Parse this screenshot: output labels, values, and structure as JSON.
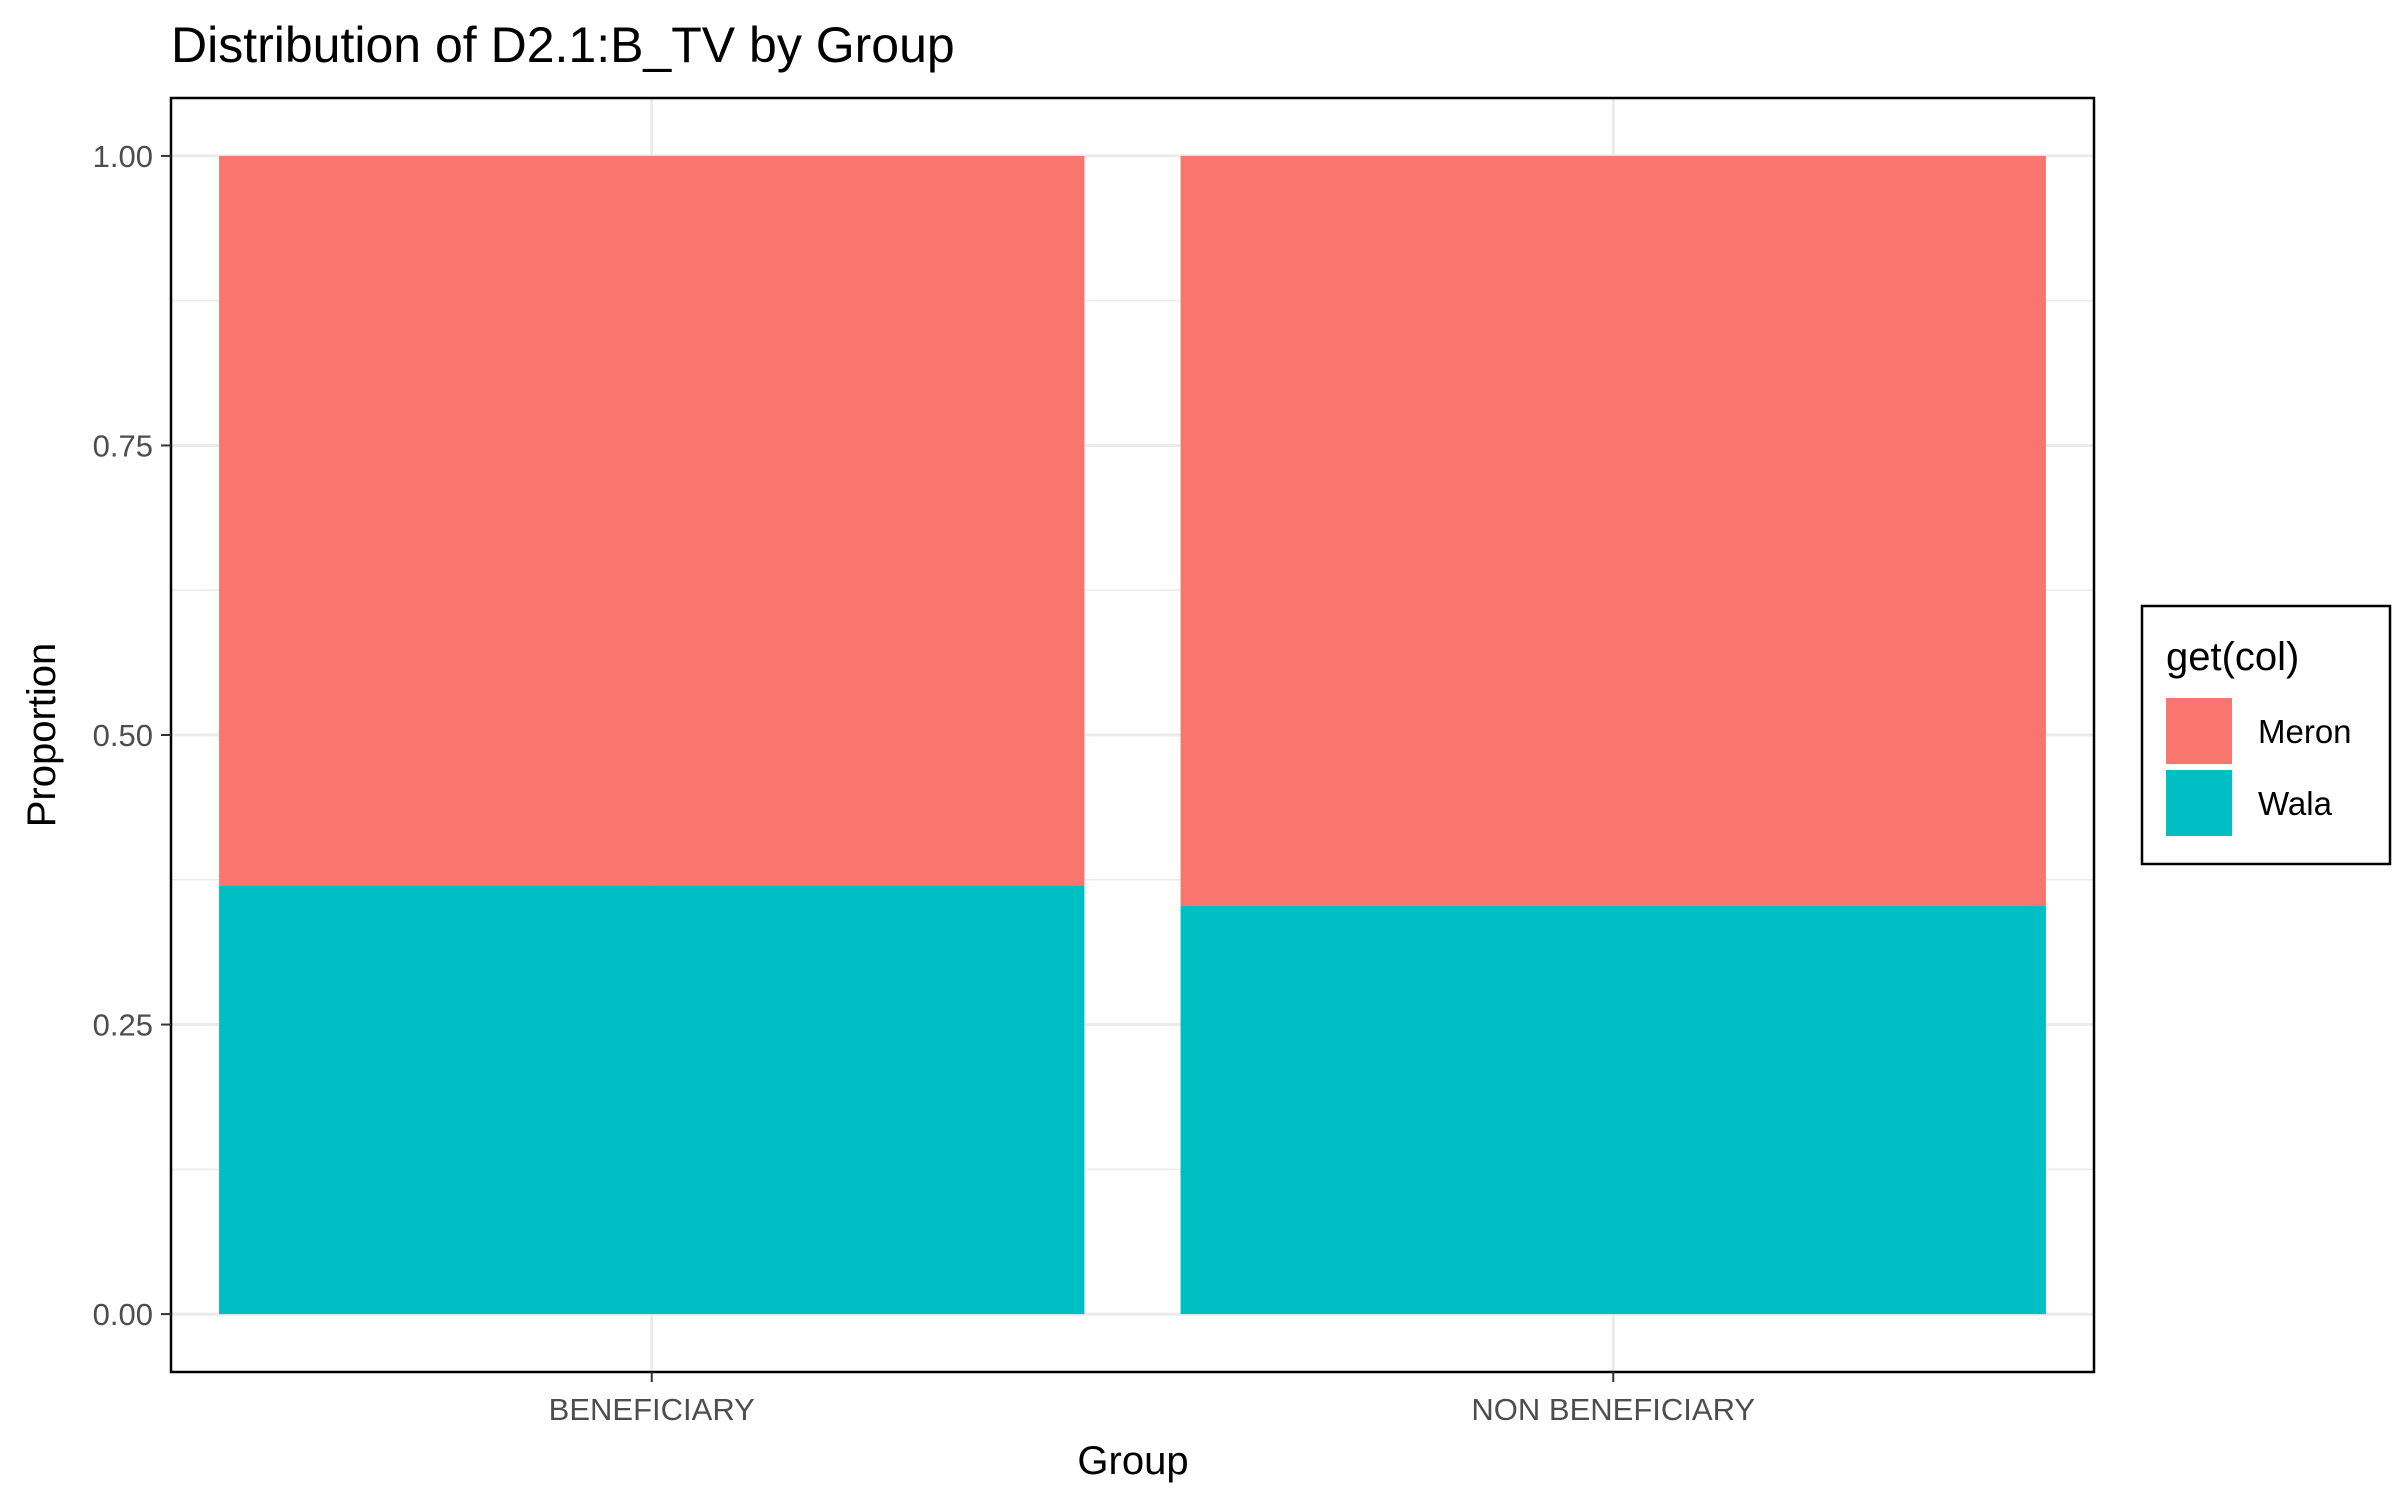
{
  "chart_data": {
    "type": "bar",
    "stacked": true,
    "title": "Distribution of D2.1:B_TV by Group",
    "xlabel": "Group",
    "ylabel": "Proportion",
    "categories": [
      "BENEFICIARY",
      "NON BENEFICIARY"
    ],
    "series": [
      {
        "name": "Wala",
        "color": "#00BFC4",
        "values": [
          0.37,
          0.353
        ]
      },
      {
        "name": "Meron",
        "color": "#F8766D",
        "values": [
          0.63,
          0.647
        ]
      }
    ],
    "ylim": [
      -0.05,
      1.05
    ],
    "yticks": [
      0,
      0.25,
      0.5,
      0.75,
      1
    ],
    "ytick_labels": [
      "0.00",
      "0.25",
      "0.50",
      "0.75",
      "1.00"
    ],
    "grid": true,
    "legend": {
      "title": "get(col)",
      "position": "right",
      "entries": [
        "Meron",
        "Wala"
      ]
    }
  }
}
